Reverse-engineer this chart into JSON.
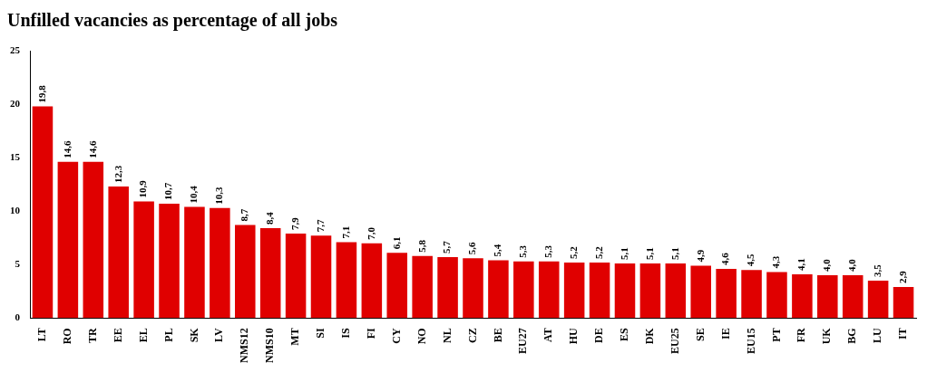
{
  "chart_data": {
    "type": "bar",
    "title": "Unfilled vacancies as percentage of all jobs",
    "categories": [
      "LT",
      "RO",
      "TR",
      "EE",
      "EL",
      "PL",
      "SK",
      "LV",
      "NMS12",
      "NMS10",
      "MT",
      "SI",
      "IS",
      "FI",
      "CY",
      "NO",
      "NL",
      "CZ",
      "BE",
      "EU27",
      "AT",
      "HU",
      "DE",
      "ES",
      "DK",
      "EU25",
      "SE",
      "IE",
      "EU15",
      "PT",
      "FR",
      "UK",
      "BG",
      "LU",
      "IT"
    ],
    "values": [
      19.8,
      14.6,
      14.6,
      12.3,
      10.9,
      10.7,
      10.4,
      10.3,
      8.7,
      8.4,
      7.9,
      7.7,
      7.1,
      7.0,
      6.1,
      5.8,
      5.7,
      5.6,
      5.4,
      5.3,
      5.3,
      5.2,
      5.2,
      5.1,
      5.1,
      5.1,
      4.9,
      4.6,
      4.5,
      4.3,
      4.1,
      4.0,
      4.0,
      3.5,
      2.9
    ],
    "value_labels": [
      "19,8",
      "14,6",
      "14,6",
      "12,3",
      "10,9",
      "10,7",
      "10,4",
      "10,3",
      "8,7",
      "8,4",
      "7,9",
      "7,7",
      "7,1",
      "7,0",
      "6,1",
      "5,8",
      "5,7",
      "5,6",
      "5,4",
      "5,3",
      "5,3",
      "5,2",
      "5,2",
      "5,1",
      "5,1",
      "5,1",
      "4,9",
      "4,6",
      "4,5",
      "4,3",
      "4,1",
      "4,0",
      "4,0",
      "3,5",
      "2,9"
    ],
    "color": "#e00000",
    "ylim": [
      0,
      25
    ],
    "yticks": [
      0,
      5,
      10,
      15,
      20,
      25
    ],
    "grid": false,
    "legend": false
  }
}
